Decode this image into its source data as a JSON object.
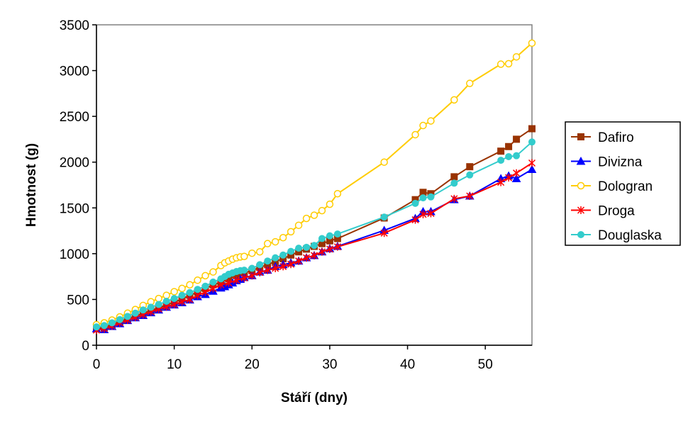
{
  "chart_data": {
    "type": "line",
    "xlabel": "Stáří (dny)",
    "ylabel": "Hmotnost (g)",
    "xlim": [
      0,
      56
    ],
    "ylim": [
      0,
      3500
    ],
    "xticks": [
      0,
      10,
      20,
      30,
      40,
      50
    ],
    "xtick_labels": [
      "0",
      "10",
      "20",
      "30",
      "40",
      "50"
    ],
    "yticks": [
      0,
      500,
      1000,
      1500,
      2000,
      2500,
      3000,
      3500
    ],
    "ytick_labels": [
      "0",
      "500",
      "1000",
      "1500",
      "2000",
      "2500",
      "3000",
      "3500"
    ],
    "grid": false,
    "legend_position": "right",
    "series": [
      {
        "name": "Dafiro",
        "color": "#993300",
        "marker": "square",
        "x": [
          0,
          1,
          2,
          3,
          4,
          5,
          6,
          7,
          8,
          9,
          10,
          11,
          12,
          13,
          14,
          15,
          16,
          17,
          18,
          19,
          20,
          21,
          22,
          23,
          24,
          25,
          26,
          27,
          28,
          29,
          30,
          31,
          37,
          41,
          42,
          43,
          46,
          48,
          52,
          53,
          54,
          56
        ],
        "y": [
          185,
          195,
          225,
          258,
          290,
          320,
          350,
          380,
          410,
          440,
          470,
          505,
          545,
          580,
          620,
          660,
          690,
          725,
          760,
          790,
          815,
          850,
          880,
          915,
          945,
          985,
          1020,
          1050,
          1080,
          1110,
          1140,
          1165,
          1390,
          1590,
          1670,
          1655,
          1840,
          1950,
          2120,
          2170,
          2250,
          2365
        ]
      },
      {
        "name": "Divizna",
        "color": "#0000ff",
        "marker": "triangle",
        "x": [
          0,
          1,
          2,
          3,
          4,
          5,
          6,
          7,
          8,
          9,
          10,
          11,
          12,
          13,
          14,
          15,
          16,
          16.5,
          17,
          17.5,
          18,
          18.5,
          19,
          20,
          21,
          22,
          23,
          24,
          25,
          26,
          27,
          28,
          29,
          30,
          31,
          37,
          41,
          42,
          43,
          46,
          48,
          52,
          53,
          54,
          56
        ],
        "y": [
          180,
          170,
          205,
          235,
          270,
          300,
          325,
          355,
          385,
          415,
          440,
          465,
          495,
          530,
          555,
          590,
          625,
          640,
          660,
          680,
          705,
          720,
          740,
          760,
          800,
          820,
          860,
          880,
          900,
          920,
          955,
          980,
          1020,
          1055,
          1080,
          1255,
          1385,
          1460,
          1460,
          1590,
          1630,
          1820,
          1850,
          1820,
          1920
        ]
      },
      {
        "name": "Dologran",
        "color": "#ffcc00",
        "marker": "circle-open",
        "x": [
          0,
          1,
          2,
          3,
          4,
          5,
          6,
          7,
          8,
          9,
          10,
          11,
          12,
          13,
          14,
          15,
          16,
          16.5,
          17,
          17.5,
          18,
          18.5,
          19,
          20,
          21,
          22,
          23,
          24,
          25,
          26,
          27,
          28,
          29,
          30,
          31,
          37,
          41,
          42,
          43,
          46,
          48,
          52,
          53,
          54,
          56
        ],
        "y": [
          225,
          245,
          275,
          310,
          350,
          390,
          435,
          475,
          510,
          545,
          585,
          620,
          660,
          710,
          760,
          800,
          870,
          900,
          920,
          940,
          955,
          965,
          970,
          1005,
          1020,
          1110,
          1130,
          1175,
          1240,
          1310,
          1385,
          1420,
          1470,
          1540,
          1655,
          2000,
          2300,
          2400,
          2450,
          2680,
          2860,
          3070,
          3075,
          3150,
          3300
        ]
      },
      {
        "name": "Droga",
        "color": "#ff0000",
        "marker": "star",
        "x": [
          0,
          1,
          2,
          3,
          4,
          5,
          6,
          7,
          8,
          9,
          10,
          11,
          12,
          13,
          14,
          15,
          16,
          17,
          18,
          19,
          20,
          21,
          22,
          23,
          24,
          25,
          26,
          27,
          28,
          29,
          30,
          31,
          37,
          41,
          42,
          43,
          46,
          48,
          52,
          53,
          54,
          56
        ],
        "y": [
          165,
          180,
          210,
          245,
          275,
          305,
          335,
          365,
          395,
          420,
          445,
          475,
          500,
          545,
          580,
          620,
          660,
          680,
          710,
          735,
          760,
          795,
          820,
          840,
          860,
          885,
          920,
          955,
          980,
          1020,
          1050,
          1075,
          1225,
          1370,
          1430,
          1440,
          1600,
          1630,
          1780,
          1830,
          1880,
          1990
        ]
      },
      {
        "name": "Douglaska",
        "color": "#33cccc",
        "marker": "circle-filled",
        "x": [
          0,
          1,
          2,
          3,
          4,
          5,
          6,
          7,
          8,
          9,
          10,
          11,
          12,
          13,
          14,
          15,
          16,
          16.5,
          17,
          17.5,
          18,
          18.5,
          19,
          20,
          21,
          22,
          23,
          24,
          25,
          26,
          27,
          28,
          29,
          30,
          31,
          37,
          41,
          42,
          43,
          46,
          48,
          52,
          53,
          54,
          56
        ],
        "y": [
          200,
          215,
          245,
          280,
          315,
          350,
          385,
          415,
          445,
          480,
          510,
          545,
          575,
          610,
          645,
          690,
          725,
          750,
          775,
          790,
          805,
          815,
          820,
          840,
          880,
          920,
          955,
          985,
          1025,
          1060,
          1070,
          1090,
          1165,
          1195,
          1215,
          1400,
          1550,
          1610,
          1620,
          1770,
          1860,
          2020,
          2060,
          2070,
          2220
        ]
      }
    ]
  }
}
